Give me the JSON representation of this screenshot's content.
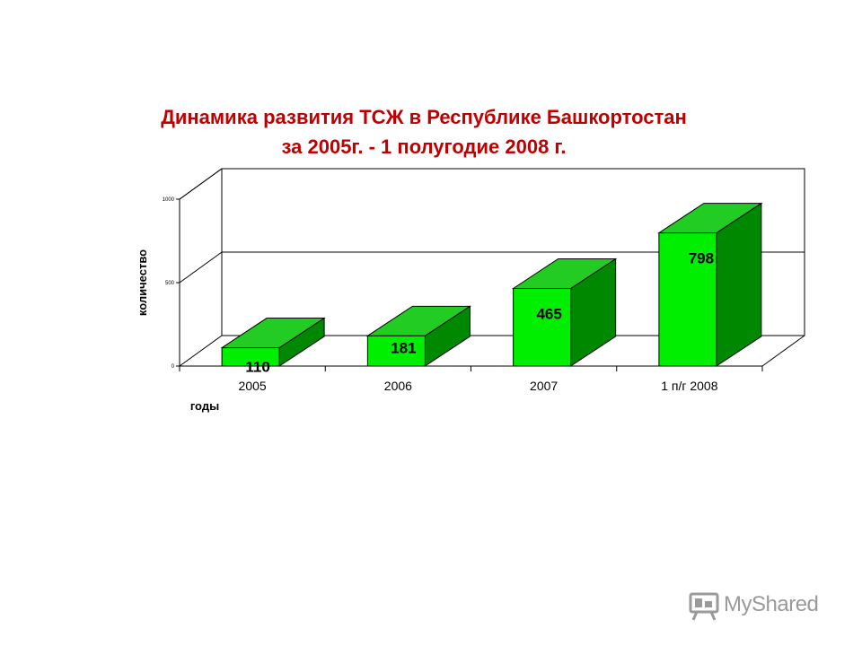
{
  "slide": {
    "title_line1": "Динамика развития ТСЖ в Республике Башкортостан",
    "title_line2": "за 2005г. - 1 полугодие 2008 г."
  },
  "chart_data": {
    "type": "bar",
    "categories": [
      "2005",
      "2006",
      "2007",
      "1 п/г 2008"
    ],
    "values": [
      110,
      181,
      465,
      798
    ],
    "data_labels": [
      "110",
      "181",
      "465",
      "798"
    ],
    "xlabel": "годы",
    "ylabel": "количество",
    "ylim": [
      0,
      1000
    ],
    "yticks": [
      "0",
      "500",
      "1000"
    ],
    "grid": true,
    "style": "3d-column",
    "colors": {
      "front": "#00ee00",
      "top": "#22cc22",
      "side": "#008800",
      "outline": "#000000"
    }
  },
  "watermark": {
    "brand": "MyShared",
    "icon": "presentation-board-icon"
  }
}
